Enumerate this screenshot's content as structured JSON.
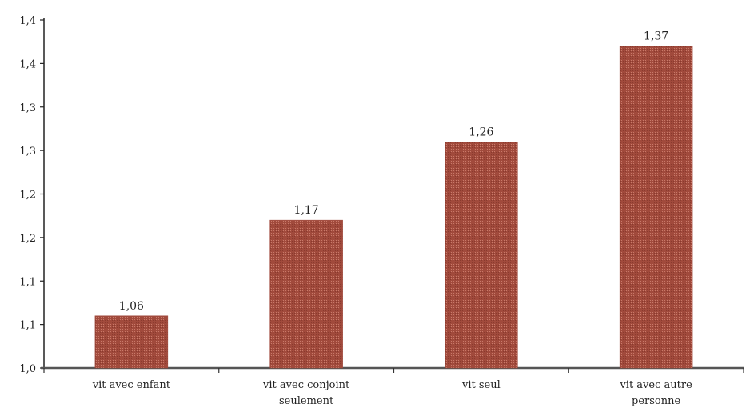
{
  "chart_data": {
    "type": "bar",
    "title": "",
    "xlabel": "",
    "ylabel": "",
    "categories": [
      [
        "vit avec enfant"
      ],
      [
        "vit avec conjoint",
        "seulement"
      ],
      [
        "vit seul"
      ],
      [
        "vit avec autre",
        "personne"
      ]
    ],
    "values": [
      1.06,
      1.17,
      1.26,
      1.37
    ],
    "data_labels": [
      "1,06",
      "1,17",
      "1,26",
      "1,37"
    ],
    "y_ticks": [
      {
        "value": 1.0,
        "label": "1,0"
      },
      {
        "value": 1.05,
        "label": "1,1"
      },
      {
        "value": 1.1,
        "label": "1,1"
      },
      {
        "value": 1.15,
        "label": "1,2"
      },
      {
        "value": 1.2,
        "label": "1,2"
      },
      {
        "value": 1.25,
        "label": "1,3"
      },
      {
        "value": 1.3,
        "label": "1,3"
      },
      {
        "value": 1.35,
        "label": "1,4"
      },
      {
        "value": 1.4,
        "label": "1,4"
      }
    ],
    "ylim": [
      1.0,
      1.4
    ],
    "grid": false,
    "legend": "none",
    "bar_color": "#a14a3c"
  }
}
